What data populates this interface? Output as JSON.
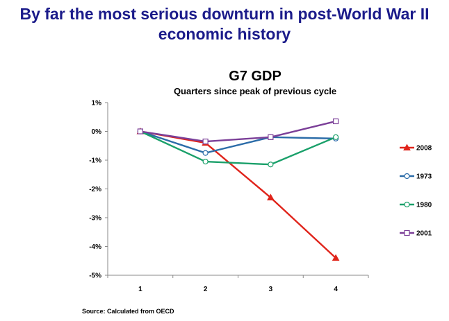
{
  "slide": {
    "title_line1": "By far the most serious downturn in post-World War II",
    "title_line2": "economic history"
  },
  "source": "Source: Calculated from OECD",
  "colors": {
    "title": "#1b1b8a",
    "s2008": "#e0241b",
    "s1973": "#2b6ca8",
    "s1980": "#1aa06a",
    "s2001": "#7b3f98"
  },
  "chart_data": {
    "type": "line",
    "title": "G7 GDP",
    "subtitle": "Quarters since peak of previous cycle",
    "x": [
      1,
      2,
      3,
      4
    ],
    "x_tick_labels": [
      "1",
      "2",
      "3",
      "4"
    ],
    "ylim": [
      -5,
      1
    ],
    "y_ticks": [
      1,
      0,
      -1,
      -2,
      -3,
      -4,
      -5
    ],
    "y_tick_labels": [
      "1%",
      "0%",
      "-1%",
      "-2%",
      "-3%",
      "-4%",
      "-5%"
    ],
    "legend_position": "right",
    "series": [
      {
        "name": "2008",
        "values": [
          0,
          -0.4,
          -2.3,
          -4.4
        ],
        "marker": "triangle",
        "color_key": "s2008"
      },
      {
        "name": "1973",
        "values": [
          0,
          -0.75,
          -0.2,
          -0.25
        ],
        "marker": "circle",
        "color_key": "s1973"
      },
      {
        "name": "1980",
        "values": [
          0,
          -1.05,
          -1.15,
          -0.2
        ],
        "marker": "circle",
        "color_key": "s1980"
      },
      {
        "name": "2001",
        "values": [
          0,
          -0.35,
          -0.2,
          0.35
        ],
        "marker": "square",
        "color_key": "s2001"
      }
    ]
  }
}
